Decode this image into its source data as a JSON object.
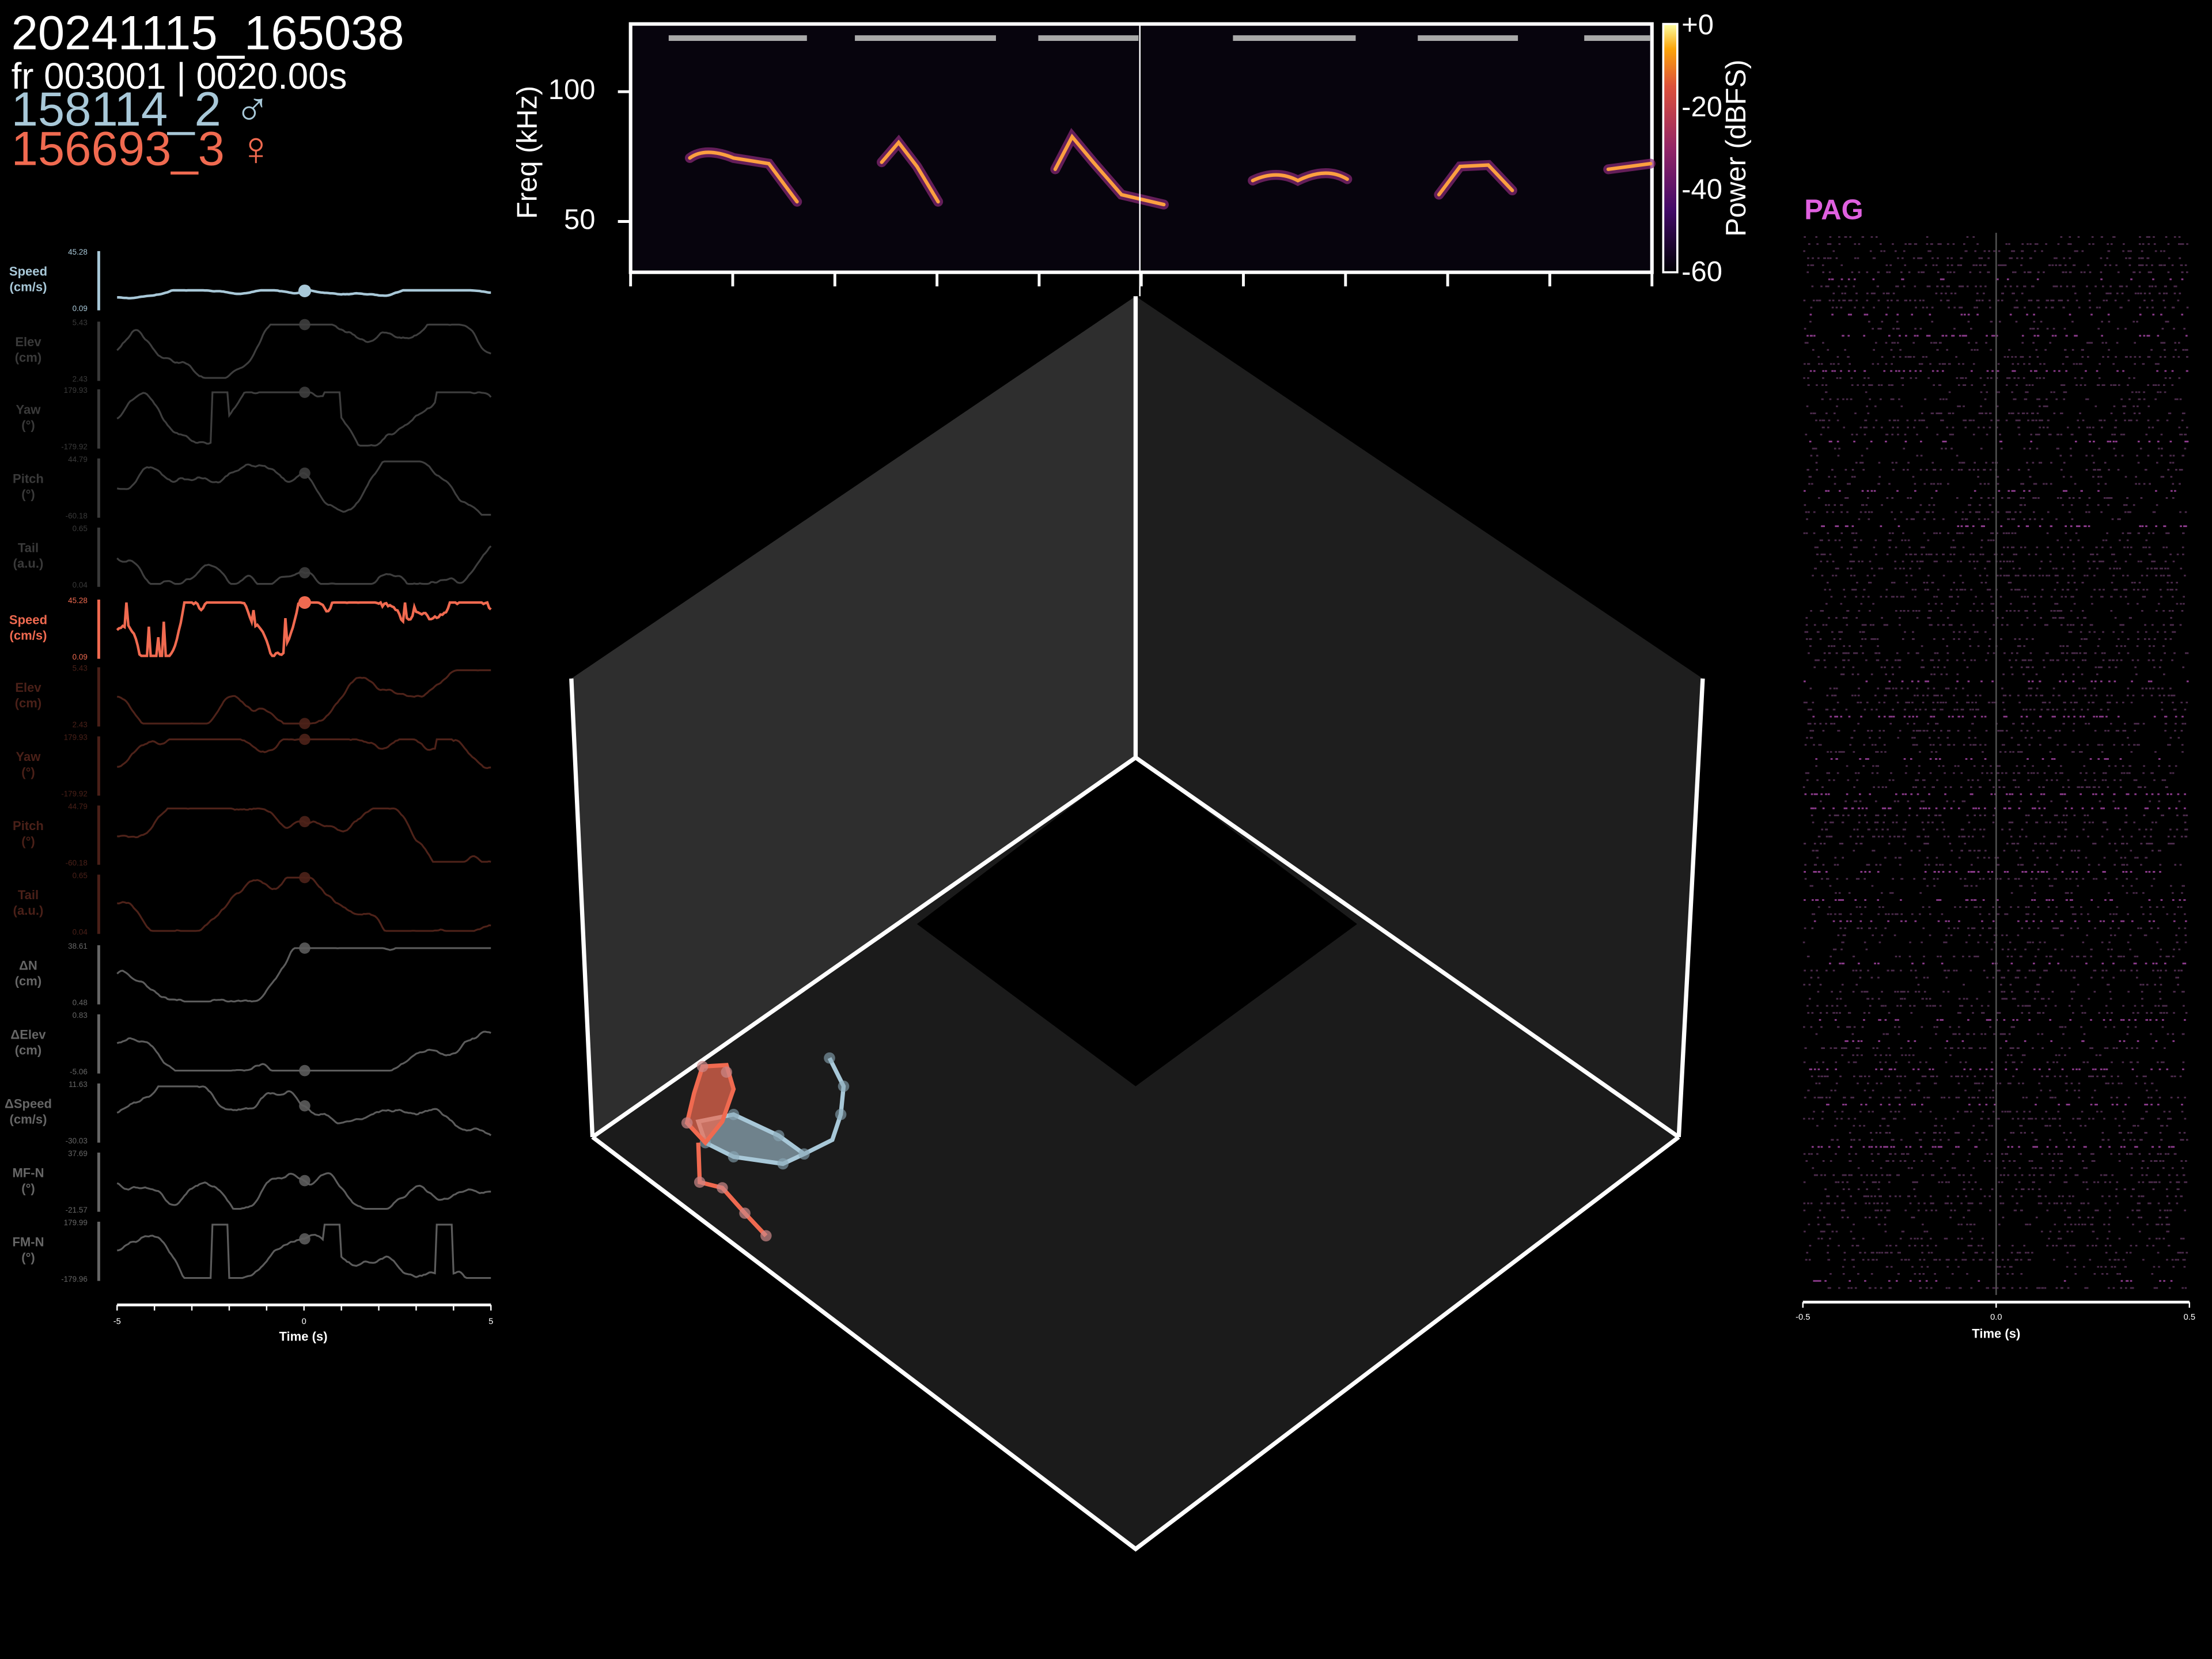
{
  "header": {
    "session": "20241115_165038",
    "frame": "fr 003001 | 0020.00s",
    "animal_1": "158114_2 ♂",
    "animal_2": "156693_3 ♀"
  },
  "traces": [
    {
      "label": "Speed",
      "unit": "(cm/s)",
      "max": "45.28",
      "min": "0.09"
    },
    {
      "label": "Elev",
      "unit": "(cm)",
      "max": "5.43",
      "min": "2.43"
    },
    {
      "label": "Yaw",
      "unit": "(°)",
      "max": "179.93",
      "min": "-179.92"
    },
    {
      "label": "Pitch",
      "unit": "(°)",
      "max": "44.79",
      "min": "-60.18"
    },
    {
      "label": "Tail",
      "unit": "(a.u.)",
      "max": "0.65",
      "min": "0.04"
    },
    {
      "label": "Speed",
      "unit": "(cm/s)",
      "max": "45.28",
      "min": "0.09"
    },
    {
      "label": "Elev",
      "unit": "(cm)",
      "max": "5.43",
      "min": "2.43"
    },
    {
      "label": "Yaw",
      "unit": "(°)",
      "max": "179.93",
      "min": "-179.92"
    },
    {
      "label": "Pitch",
      "unit": "(°)",
      "max": "44.79",
      "min": "-60.18"
    },
    {
      "label": "Tail",
      "unit": "(a.u.)",
      "max": "0.65",
      "min": "0.04"
    },
    {
      "label": "ΔN",
      "unit": "(cm)",
      "max": "38.61",
      "min": "0.48"
    },
    {
      "label": "ΔElev",
      "unit": "(cm)",
      "max": "0.83",
      "min": "-5.06"
    },
    {
      "label": "ΔSpeed",
      "unit": "(cm/s)",
      "max": "11.63",
      "min": "-30.03"
    },
    {
      "label": "MF-N",
      "unit": "(°)",
      "max": "37.69",
      "min": "-21.57"
    },
    {
      "label": "FM-N",
      "unit": "(°)",
      "max": "179.99",
      "min": "-179.96"
    }
  ],
  "trace_axis": {
    "ticks": [
      "-5",
      "0",
      "5"
    ],
    "label": "Time (s)"
  },
  "spectrogram": {
    "ylabel": "Freq (kHz)",
    "yticks": [
      "100",
      "50"
    ],
    "colorbar": {
      "label": "Power (dBFS)",
      "ticks": [
        "+0",
        "-20",
        "-40",
        "-60"
      ]
    }
  },
  "raster": {
    "title": "PAG",
    "ticks": [
      "-0.5",
      "0.0",
      "0.5"
    ],
    "label": "Time (s)"
  }
}
